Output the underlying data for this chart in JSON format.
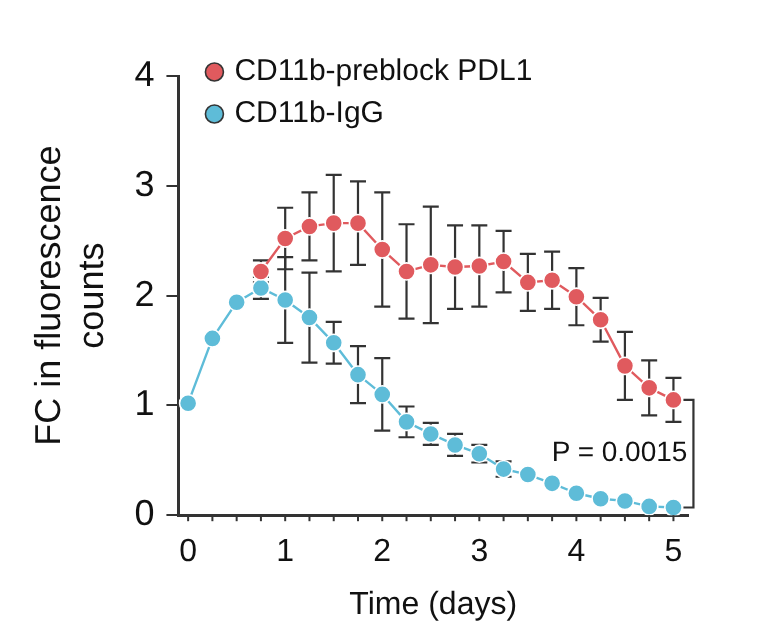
{
  "chart_data": {
    "type": "line",
    "xlabel": "Time (days)",
    "ylabel": "FC in fluorescence counts",
    "x": [
      0,
      0.25,
      0.5,
      0.75,
      1,
      1.25,
      1.5,
      1.75,
      2,
      2.25,
      2.5,
      2.75,
      3,
      3.25,
      3.5,
      3.75,
      4,
      4.25,
      4.5,
      4.75,
      5
    ],
    "xlim": [
      -0.1,
      5.15
    ],
    "xticks": [
      0,
      1,
      2,
      3,
      4,
      5
    ],
    "ylim": [
      0,
      4
    ],
    "yticks": [
      0,
      1,
      2,
      3,
      4
    ],
    "series": [
      {
        "name": "CD11b-preblock PDL1",
        "color": "#e05a5e",
        "values": [
          null,
          null,
          null,
          2.22,
          2.52,
          2.63,
          2.66,
          2.66,
          2.42,
          2.22,
          2.28,
          2.26,
          2.27,
          2.31,
          2.12,
          2.14,
          1.99,
          1.78,
          1.36,
          1.16,
          1.05
        ],
        "errors": [
          null,
          null,
          null,
          0.1,
          0.28,
          0.31,
          0.44,
          0.38,
          0.52,
          0.43,
          0.53,
          0.38,
          0.37,
          0.28,
          0.26,
          0.26,
          0.26,
          0.2,
          0.31,
          0.25,
          0.2
        ]
      },
      {
        "name": "CD11b-IgG",
        "color": "#5ebcd8",
        "values": [
          1.02,
          1.61,
          1.94,
          2.07,
          1.96,
          1.8,
          1.57,
          1.28,
          1.1,
          0.85,
          0.74,
          0.64,
          0.56,
          0.42,
          0.37,
          0.29,
          0.2,
          0.15,
          0.13,
          0.08,
          0.07
        ],
        "errors": [
          null,
          null,
          null,
          0.1,
          0.39,
          0.41,
          0.19,
          0.26,
          0.33,
          0.14,
          0.1,
          0.1,
          0.08,
          0.07,
          null,
          null,
          null,
          null,
          null,
          null,
          null
        ]
      }
    ],
    "annotations": [
      "P = 0.0015"
    ],
    "marker": "circle",
    "grid": false,
    "legend": "top left"
  }
}
